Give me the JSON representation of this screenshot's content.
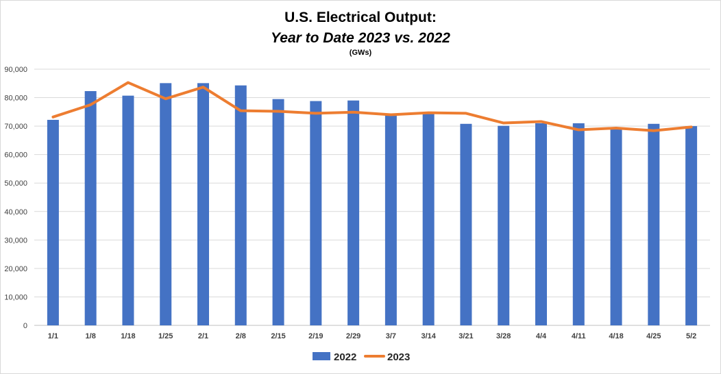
{
  "chart_data": {
    "type": "bar",
    "title": "U.S. Electrical Output:",
    "subtitle": "Year to Date 2023 vs. 2022",
    "unit_note": "(GWs)",
    "xlabel": "",
    "ylabel": "",
    "ylim": [
      0,
      90000
    ],
    "yticks": [
      0,
      10000,
      20000,
      30000,
      40000,
      50000,
      60000,
      70000,
      80000,
      90000
    ],
    "ytick_labels": [
      "0",
      "10,000",
      "20,000",
      "30,000",
      "40,000",
      "50,000",
      "60,000",
      "70,000",
      "80,000",
      "90,000"
    ],
    "grid": true,
    "legend_position": "bottom",
    "categories": [
      "1/1",
      "1/8",
      "1/18",
      "1/25",
      "2/1",
      "2/8",
      "2/15",
      "2/19",
      "2/29",
      "3/7",
      "3/14",
      "3/21",
      "3/28",
      "4/4",
      "4/11",
      "4/18",
      "4/25",
      "5/2"
    ],
    "series": [
      {
        "name": "2022",
        "type": "bar",
        "color": "#4472c4",
        "values": [
          72200,
          82300,
          80700,
          85100,
          85100,
          84300,
          79500,
          78800,
          79000,
          73800,
          75000,
          70800,
          70100,
          71000,
          71000,
          69000,
          70800,
          70000
        ]
      },
      {
        "name": "2023",
        "type": "line",
        "color": "#ed7d31",
        "values": [
          73200,
          77500,
          85300,
          79600,
          83700,
          75400,
          75200,
          74500,
          74900,
          74000,
          74700,
          74500,
          71100,
          71600,
          68700,
          69300,
          68400,
          69700
        ]
      }
    ]
  }
}
